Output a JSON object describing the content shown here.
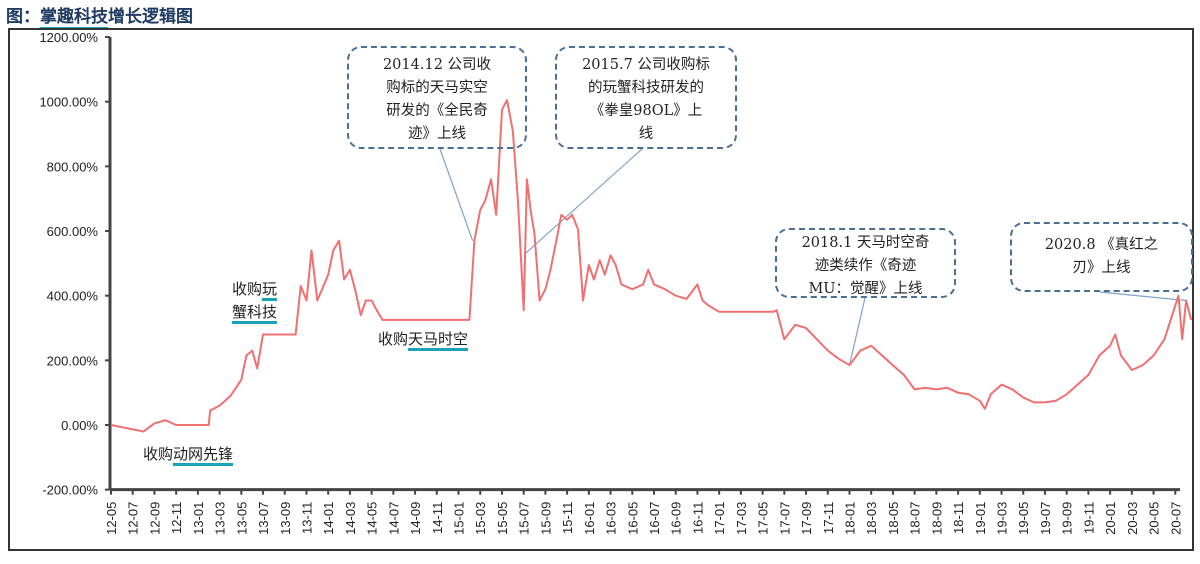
{
  "title": {
    "prefix": "图：",
    "underlined": "掌趣科技",
    "rest": "增长逻辑图"
  },
  "chart_data": {
    "type": "line",
    "title": "",
    "xlabel": "",
    "ylabel": "",
    "ylim": [
      -200,
      1200
    ],
    "y_ticks": [
      "1200.00%",
      "1000.00%",
      "800.00%",
      "600.00%",
      "400.00%",
      "200.00%",
      "0.00%",
      "-200.00%"
    ],
    "y_tick_values": [
      1200,
      1000,
      800,
      600,
      400,
      200,
      0,
      -200
    ],
    "x_ticks": [
      "12-05",
      "12-07",
      "12-09",
      "12-11",
      "13-01",
      "13-03",
      "13-05",
      "13-07",
      "13-09",
      "13-11",
      "14-01",
      "14-03",
      "14-05",
      "14-07",
      "14-09",
      "14-11",
      "15-01",
      "15-03",
      "15-05",
      "15-07",
      "15-09",
      "15-11",
      "16-01",
      "16-03",
      "16-05",
      "16-07",
      "16-09",
      "16-11",
      "17-01",
      "17-03",
      "17-05",
      "17-07",
      "17-09",
      "17-11",
      "18-01",
      "18-03",
      "18-05",
      "18-07",
      "18-09",
      "18-11",
      "19-01",
      "19-03",
      "19-05",
      "19-07",
      "19-09",
      "19-11",
      "20-01",
      "20-03",
      "20-05",
      "20-07"
    ],
    "grid": false,
    "line_color": "#f07070",
    "series": [
      {
        "points": [
          [
            "2012-05-01",
            0
          ],
          [
            "2012-06-15",
            -10
          ],
          [
            "2012-08-01",
            -20
          ],
          [
            "2012-09-01",
            5
          ],
          [
            "2012-10-01",
            15
          ],
          [
            "2012-11-01",
            0
          ],
          [
            "2013-01-01",
            0
          ],
          [
            "2013-02-01",
            0
          ],
          [
            "2013-02-05",
            45
          ],
          [
            "2013-03-01",
            60
          ],
          [
            "2013-04-01",
            90
          ],
          [
            "2013-05-01",
            140
          ],
          [
            "2013-05-15",
            215
          ],
          [
            "2013-06-01",
            230
          ],
          [
            "2013-06-15",
            175
          ],
          [
            "2013-07-01",
            280
          ],
          [
            "2013-08-01",
            280
          ],
          [
            "2013-10-01",
            280
          ],
          [
            "2013-10-15",
            430
          ],
          [
            "2013-11-01",
            385
          ],
          [
            "2013-11-15",
            540
          ],
          [
            "2013-12-01",
            385
          ],
          [
            "2014-01-01",
            465
          ],
          [
            "2014-01-15",
            540
          ],
          [
            "2014-02-01",
            570
          ],
          [
            "2014-02-15",
            450
          ],
          [
            "2014-03-01",
            480
          ],
          [
            "2014-03-15",
            420
          ],
          [
            "2014-04-01",
            340
          ],
          [
            "2014-04-15",
            385
          ],
          [
            "2014-05-01",
            385
          ],
          [
            "2014-05-15",
            355
          ],
          [
            "2014-06-01",
            325
          ],
          [
            "2015-02-01",
            325
          ],
          [
            "2015-02-15",
            570
          ],
          [
            "2015-03-01",
            665
          ],
          [
            "2015-03-15",
            695
          ],
          [
            "2015-04-01",
            760
          ],
          [
            "2015-04-15",
            650
          ],
          [
            "2015-05-01",
            975
          ],
          [
            "2015-05-15",
            1005
          ],
          [
            "2015-06-01",
            910
          ],
          [
            "2015-06-15",
            695
          ],
          [
            "2015-07-01",
            355
          ],
          [
            "2015-07-10",
            760
          ],
          [
            "2015-07-20",
            665
          ],
          [
            "2015-08-01",
            590
          ],
          [
            "2015-08-15",
            385
          ],
          [
            "2015-09-01",
            420
          ],
          [
            "2015-09-15",
            480
          ],
          [
            "2015-10-01",
            570
          ],
          [
            "2015-10-15",
            650
          ],
          [
            "2015-11-01",
            635
          ],
          [
            "2015-11-15",
            650
          ],
          [
            "2015-12-01",
            605
          ],
          [
            "2015-12-15",
            385
          ],
          [
            "2016-01-01",
            495
          ],
          [
            "2016-01-15",
            450
          ],
          [
            "2016-02-01",
            510
          ],
          [
            "2016-02-15",
            465
          ],
          [
            "2016-03-01",
            525
          ],
          [
            "2016-03-15",
            495
          ],
          [
            "2016-04-01",
            435
          ],
          [
            "2016-05-01",
            420
          ],
          [
            "2016-06-01",
            435
          ],
          [
            "2016-06-15",
            480
          ],
          [
            "2016-07-01",
            435
          ],
          [
            "2016-08-01",
            420
          ],
          [
            "2016-09-01",
            400
          ],
          [
            "2016-10-01",
            390
          ],
          [
            "2016-11-01",
            435
          ],
          [
            "2016-11-15",
            385
          ],
          [
            "2016-12-01",
            370
          ],
          [
            "2017-01-01",
            350
          ],
          [
            "2017-06-01",
            350
          ],
          [
            "2017-06-10",
            355
          ],
          [
            "2017-07-01",
            265
          ],
          [
            "2017-08-01",
            310
          ],
          [
            "2017-09-01",
            300
          ],
          [
            "2017-10-01",
            265
          ],
          [
            "2017-11-01",
            230
          ],
          [
            "2017-12-01",
            205
          ],
          [
            "2018-01-01",
            185
          ],
          [
            "2018-02-01",
            230
          ],
          [
            "2018-03-01",
            245
          ],
          [
            "2018-04-01",
            215
          ],
          [
            "2018-05-01",
            185
          ],
          [
            "2018-06-01",
            155
          ],
          [
            "2018-07-01",
            110
          ],
          [
            "2018-08-01",
            115
          ],
          [
            "2018-09-01",
            110
          ],
          [
            "2018-10-01",
            115
          ],
          [
            "2018-11-01",
            100
          ],
          [
            "2018-12-01",
            95
          ],
          [
            "2019-01-01",
            75
          ],
          [
            "2019-01-15",
            50
          ],
          [
            "2019-02-01",
            95
          ],
          [
            "2019-03-01",
            125
          ],
          [
            "2019-04-01",
            110
          ],
          [
            "2019-05-01",
            85
          ],
          [
            "2019-06-01",
            70
          ],
          [
            "2019-07-01",
            70
          ],
          [
            "2019-08-01",
            75
          ],
          [
            "2019-09-01",
            95
          ],
          [
            "2019-10-01",
            125
          ],
          [
            "2019-11-01",
            155
          ],
          [
            "2019-12-01",
            215
          ],
          [
            "2020-01-01",
            245
          ],
          [
            "2020-01-15",
            280
          ],
          [
            "2020-02-01",
            215
          ],
          [
            "2020-03-01",
            170
          ],
          [
            "2020-04-01",
            185
          ],
          [
            "2020-05-01",
            215
          ],
          [
            "2020-06-01",
            265
          ],
          [
            "2020-07-01",
            370
          ],
          [
            "2020-07-10",
            400
          ],
          [
            "2020-07-20",
            265
          ],
          [
            "2020-08-01",
            385
          ],
          [
            "2020-08-15",
            325
          ]
        ]
      }
    ],
    "annotations": [
      {
        "lines": [
          "2014.12 公司收",
          "购标的天马实空",
          "研发的《全民奇",
          "迹》上线"
        ],
        "date": "2015-02-10",
        "value": 570
      },
      {
        "lines": [
          "2015.7 公司收购标",
          "的玩蟹科技研发的",
          "《拳皇98OL》上",
          "线"
        ],
        "date": "2015-07-05",
        "value": 530
      },
      {
        "lines": [
          "2018.1 天马时空奇",
          "迹类续作《奇迹",
          "MU：觉醒》上线"
        ],
        "date": "2018-01-01",
        "value": 185
      },
      {
        "lines": [
          "2020.8 《真红之",
          "刃》上线"
        ],
        "date": "2020-08-01",
        "value": 385
      }
    ],
    "event_labels": [
      {
        "prefix": "收购",
        "underlined": "动网先锋"
      },
      {
        "prefix": "收购",
        "underlined": "玩",
        "line2": "蟹科技"
      },
      {
        "prefix": "收购",
        "underlined": "天马时空"
      }
    ]
  }
}
